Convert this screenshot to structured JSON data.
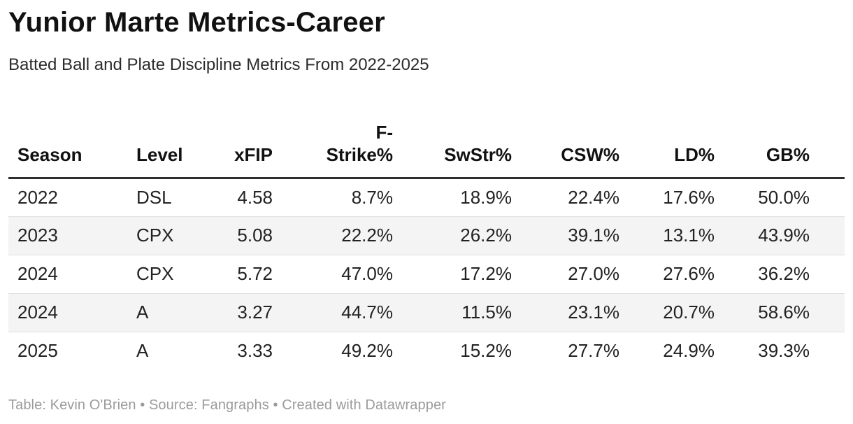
{
  "chart_data": {
    "type": "table",
    "title": "Yunior Marte Metrics-Career",
    "subtitle": "Batted Ball and Plate Discipline Metrics From 2022-2025",
    "columns": [
      "Season",
      "Level",
      "xFIP",
      "F-\nStrike%",
      "SwStr%",
      "CSW%",
      "LD%",
      "GB%"
    ],
    "column_alignments": [
      "left",
      "left",
      "right",
      "right",
      "right",
      "right",
      "right",
      "right"
    ],
    "rows": [
      [
        "2022",
        "DSL",
        "4.58",
        "8.7%",
        "18.9%",
        "22.4%",
        "17.6%",
        "50.0%"
      ],
      [
        "2023",
        "CPX",
        "5.08",
        "22.2%",
        "26.2%",
        "39.1%",
        "13.1%",
        "43.9%"
      ],
      [
        "2024",
        "CPX",
        "5.72",
        "47.0%",
        "17.2%",
        "27.0%",
        "27.6%",
        "36.2%"
      ],
      [
        "2024",
        "A",
        "3.27",
        "44.7%",
        "11.5%",
        "23.1%",
        "20.7%",
        "58.6%"
      ],
      [
        "2025",
        "A",
        "3.33",
        "49.2%",
        "15.2%",
        "27.7%",
        "24.9%",
        "39.3%"
      ]
    ],
    "footer": "Table: Kevin O'Brien • Source: Fangraphs • Created with Datawrapper"
  },
  "colors": {
    "title_text": "#111111",
    "body_text": "#222222",
    "stripe_background": "#f4f4f4",
    "header_rule": "#2e2e2e",
    "row_rule": "#e1e1e1",
    "footer_text": "#9b9b9b"
  }
}
